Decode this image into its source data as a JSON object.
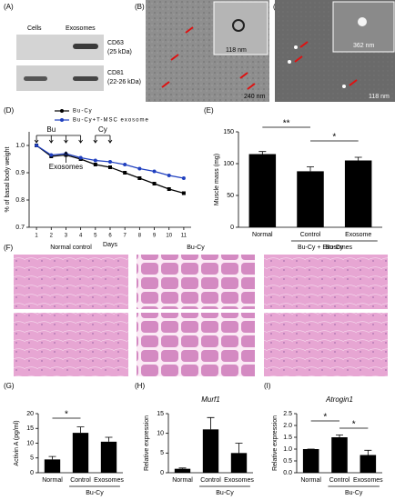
{
  "panels": {
    "a": {
      "label": "(A)",
      "columns": [
        "Cells",
        "Exosomes"
      ],
      "rows": [
        {
          "marker": "CD63",
          "size": "(25 kDa)"
        },
        {
          "marker": "CD81",
          "size": "(22-26 kDa)"
        }
      ]
    },
    "b": {
      "label": "(B)",
      "inset_scale": "118 nm",
      "scale": "240 nm"
    },
    "c": {
      "label": "(C)",
      "inset_scale": "362 nm",
      "scale": "118 nm"
    },
    "f": {
      "label": "(F)",
      "columns": [
        "Normal control",
        "Bu-Cy",
        "Bu-Cy + Exosomes"
      ]
    }
  },
  "chart_data": [
    {
      "type": "line",
      "panel_label": "(D)",
      "y_label": "% of basal body weight",
      "x_label": "Days",
      "x": [
        1,
        2,
        3,
        4,
        5,
        6,
        7,
        8,
        9,
        10,
        11
      ],
      "xlim": [
        0.5,
        11.5
      ],
      "xticks": [
        1,
        2,
        3,
        4,
        5,
        6,
        7,
        8,
        9,
        10,
        11
      ],
      "ylim": [
        0.7,
        1.05
      ],
      "yticks": [
        0.7,
        0.8,
        0.9,
        {
          "value": 1,
          "label": "1.0"
        }
      ],
      "series": [
        {
          "name": "Bu-Cy",
          "color": "#000000",
          "values": [
            1.0,
            0.96,
            0.965,
            0.95,
            0.93,
            0.92,
            0.9,
            0.88,
            0.86,
            0.84,
            0.825
          ]
        },
        {
          "name": "Bu-Cy+T-MSC exosome",
          "color": "#1f3fbf",
          "values": [
            1.0,
            0.965,
            0.97,
            0.955,
            0.945,
            0.94,
            0.93,
            0.915,
            0.905,
            0.89,
            0.88
          ]
        }
      ],
      "annotations": [
        "Bu",
        "Cy",
        "Exosomes"
      ]
    },
    {
      "type": "bar",
      "panel_label": "(E)",
      "y_label": "Muscle mass (mg)",
      "categories": [
        "Normal",
        "Control",
        "Exosome"
      ],
      "group_label": "Bu-Cy",
      "values": [
        115,
        88,
        105
      ],
      "errors": [
        4,
        7,
        5
      ],
      "color": "#000000",
      "ylim": [
        0,
        150
      ],
      "yticks": [
        0,
        50,
        100,
        150
      ],
      "significance": [
        "**",
        "*"
      ]
    },
    {
      "type": "bar",
      "panel_label": "(G)",
      "y_label": "Activin A (pg/ml)",
      "categories": [
        "Normal",
        "Control",
        "Exosomes"
      ],
      "group_label": "Bu-Cy",
      "values": [
        4.5,
        13.5,
        10.5
      ],
      "errors": [
        1,
        2,
        1.5
      ],
      "color": "#000000",
      "ylim": [
        0,
        20
      ],
      "yticks": [
        0,
        5,
        10,
        15,
        20
      ],
      "significance": [
        "*"
      ]
    },
    {
      "type": "bar",
      "panel_label": "(H)",
      "title": "Murf1",
      "y_label": "Relative expression",
      "categories": [
        "Normal",
        "Control",
        "Exosomes"
      ],
      "group_label": "Bu-Cy",
      "values": [
        1,
        11,
        5
      ],
      "errors": [
        0.2,
        3,
        2.5
      ],
      "color": "#000000",
      "ylim": [
        0,
        15
      ],
      "yticks": [
        0,
        5,
        10,
        15
      ],
      "significance": []
    },
    {
      "type": "bar",
      "panel_label": "(I)",
      "title": "Atrogin1",
      "y_label": "Relative expression",
      "categories": [
        "Normal",
        "Control",
        "Exosomes"
      ],
      "group_label": "Bu-Cy",
      "values": [
        1.0,
        1.5,
        0.75
      ],
      "errors": [
        0,
        0.1,
        0.2
      ],
      "color": "#000000",
      "ylim": [
        0,
        2.5
      ],
      "yticks": [
        {
          "value": 0,
          "label": "0.0"
        },
        0.5,
        {
          "value": 1,
          "label": "1.0"
        },
        1.5,
        {
          "value": 2,
          "label": "2.0"
        },
        2.5
      ],
      "significance": [
        "*",
        "*"
      ]
    }
  ]
}
